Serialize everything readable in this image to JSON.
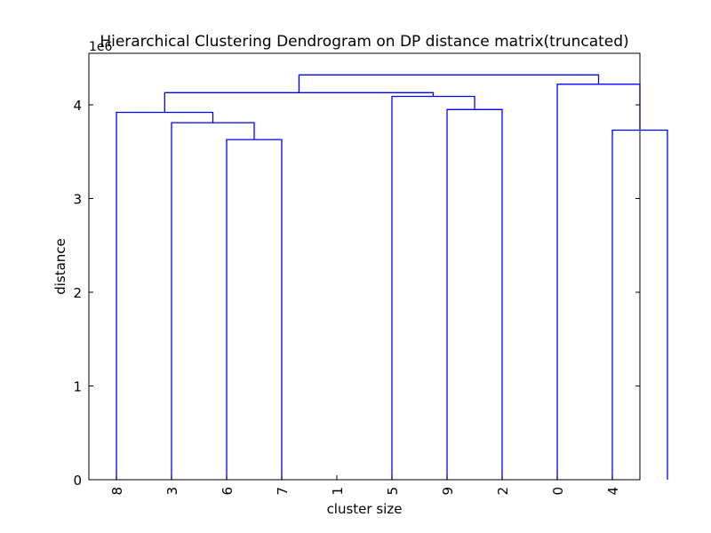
{
  "chart_data": {
    "type": "dendrogram",
    "title": "Hierarchical Clustering Dendrogram on DP distance matrix(truncated)",
    "xlabel": "cluster size",
    "ylabel": "distance",
    "y_scale_label": "1e6",
    "ylim": [
      0,
      4.55
    ],
    "yticks": [
      0,
      1,
      2,
      3,
      4
    ],
    "grid": false,
    "leaf_labels": [
      "8",
      "3",
      "6",
      "7",
      "1",
      "5",
      "9",
      "2",
      "0",
      "4"
    ],
    "merges": [
      {
        "x_left": 25,
        "x_right": 35,
        "h_left": 0,
        "h_right": 0,
        "height": 3.63
      },
      {
        "x_left": 15,
        "x_right": 30,
        "h_left": 0,
        "h_right": 3.63,
        "height": 3.81
      },
      {
        "x_left": 5,
        "x_right": 22.5,
        "h_left": 0,
        "h_right": 3.81,
        "height": 3.92
      },
      {
        "x_left": 65,
        "x_right": 75,
        "h_left": 0,
        "h_right": 0,
        "height": 3.95
      },
      {
        "x_left": 55,
        "x_right": 70,
        "h_left": 0,
        "h_right": 3.95,
        "height": 4.09
      },
      {
        "x_left": 13.75,
        "x_right": 62.5,
        "h_left": 3.92,
        "h_right": 4.09,
        "height": 4.13
      },
      {
        "x_left": 95,
        "x_right": 105,
        "h_left": 0,
        "h_right": 0,
        "height": 3.73
      },
      {
        "x_left": 85,
        "x_right": 100,
        "h_left": 0,
        "h_right": 3.73,
        "height": 4.22
      },
      {
        "x_left": 38.125,
        "x_right": 92.5,
        "h_left": 4.13,
        "h_right": 4.22,
        "height": 4.32
      }
    ],
    "line_color": "#0000ff"
  }
}
